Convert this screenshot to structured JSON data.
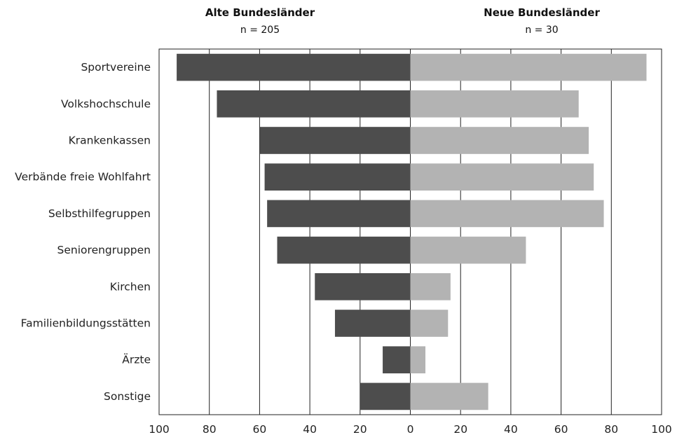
{
  "chart_data": {
    "type": "bar",
    "orientation": "horizontal",
    "layout": "butterfly",
    "categories": [
      "Sportvereine",
      "Volkshochschule",
      "Krankenkassen",
      "Verbände freie Wohlfahrt",
      "Selbsthilfegruppen",
      "Seniorengruppen",
      "Kirchen",
      "Familienbildungsstätten",
      "Ärzte",
      "Sonstige"
    ],
    "series": [
      {
        "name": "Alte Bundesländer",
        "subtitle": "n = 205",
        "side": "left",
        "color": "#4d4d4d",
        "values": [
          93,
          77,
          60,
          58,
          57,
          53,
          38,
          30,
          11,
          20
        ]
      },
      {
        "name": "Neue Bundesländer",
        "subtitle": "n = 30",
        "side": "right",
        "color": "#b3b3b3",
        "values": [
          94,
          67,
          71,
          73,
          77,
          46,
          16,
          15,
          6,
          31
        ]
      }
    ],
    "xlim_left": [
      100,
      0
    ],
    "xlim_right": [
      0,
      100
    ],
    "x_ticks": [
      "100",
      "80",
      "60",
      "40",
      "20",
      "0",
      "20",
      "40",
      "60",
      "80",
      "100"
    ],
    "grid": true,
    "legend": "none"
  }
}
